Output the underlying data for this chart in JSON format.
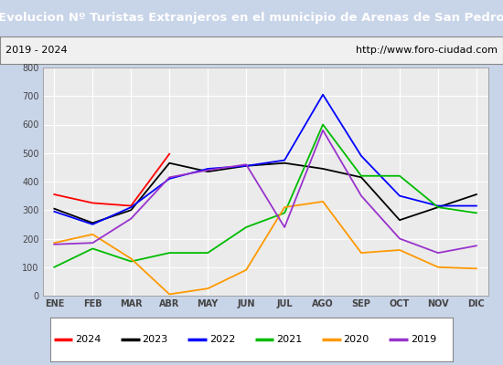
{
  "title": "Evolucion Nº Turistas Extranjeros en el municipio de Arenas de San Pedro",
  "subtitle_left": "2019 - 2024",
  "subtitle_right": "http://www.foro-ciudad.com",
  "title_bg_color": "#4472c4",
  "title_text_color": "#ffffff",
  "months": [
    "ENE",
    "FEB",
    "MAR",
    "ABR",
    "MAY",
    "JUN",
    "JUL",
    "AGO",
    "SEP",
    "OCT",
    "NOV",
    "DIC"
  ],
  "ylim": [
    0,
    800
  ],
  "yticks": [
    0,
    100,
    200,
    300,
    400,
    500,
    600,
    700,
    800
  ],
  "series": {
    "2024": {
      "color": "#ff0000",
      "data": [
        355,
        325,
        315,
        497,
        null,
        null,
        null,
        null,
        null,
        null,
        null,
        null
      ]
    },
    "2023": {
      "color": "#000000",
      "data": [
        305,
        255,
        300,
        465,
        435,
        455,
        465,
        445,
        415,
        265,
        310,
        355
      ]
    },
    "2022": {
      "color": "#0000ff",
      "data": [
        295,
        250,
        310,
        410,
        445,
        455,
        475,
        705,
        490,
        350,
        315,
        315
      ]
    },
    "2021": {
      "color": "#00bb00",
      "data": [
        100,
        165,
        120,
        150,
        150,
        240,
        290,
        600,
        420,
        420,
        310,
        290
      ]
    },
    "2020": {
      "color": "#ff9900",
      "data": [
        185,
        215,
        130,
        5,
        25,
        90,
        310,
        330,
        150,
        160,
        100,
        95
      ]
    },
    "2019": {
      "color": "#9933cc",
      "data": [
        180,
        185,
        270,
        415,
        440,
        460,
        240,
        580,
        350,
        200,
        150,
        175
      ]
    }
  },
  "legend_order": [
    "2024",
    "2023",
    "2022",
    "2021",
    "2020",
    "2019"
  ],
  "plot_bg_color": "#ebebeb",
  "grid_color": "#ffffff",
  "fig_bg_color": "#c8d4e8"
}
